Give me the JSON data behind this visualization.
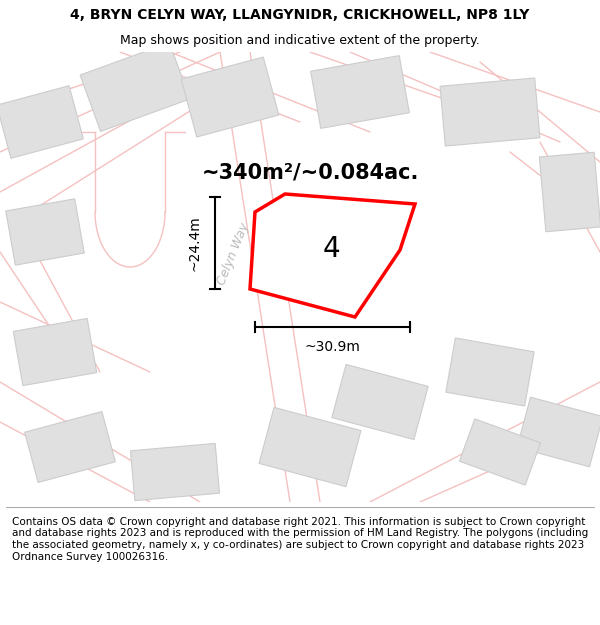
{
  "title_line1": "4, BRYN CELYN WAY, LLANGYNIDR, CRICKHOWELL, NP8 1LY",
  "title_line2": "Map shows position and indicative extent of the property.",
  "area_label": "~340m²/~0.084ac.",
  "property_number": "4",
  "dim_vertical": "~24.4m",
  "dim_horizontal": "~30.9m",
  "street_name": "Celyn Way",
  "footer_text": "Contains OS data © Crown copyright and database right 2021. This information is subject to Crown copyright and database rights 2023 and is reproduced with the permission of HM Land Registry. The polygons (including the associated geometry, namely x, y co-ordinates) are subject to Crown copyright and database rights 2023 Ordnance Survey 100026316.",
  "bg_color": "#f8f8f8",
  "neighbor_fill": "#e0e0e0",
  "neighbor_edge": "#cccccc",
  "road_outline_color": "#f5c0c0",
  "plot_edge": "#ff0000",
  "plot_fill": "#ffffff",
  "title_fontsize": 10,
  "subtitle_fontsize": 9,
  "footer_fontsize": 7.5,
  "area_label_fontsize": 15,
  "dim_fontsize": 10,
  "number_fontsize": 20,
  "street_fontsize": 9
}
